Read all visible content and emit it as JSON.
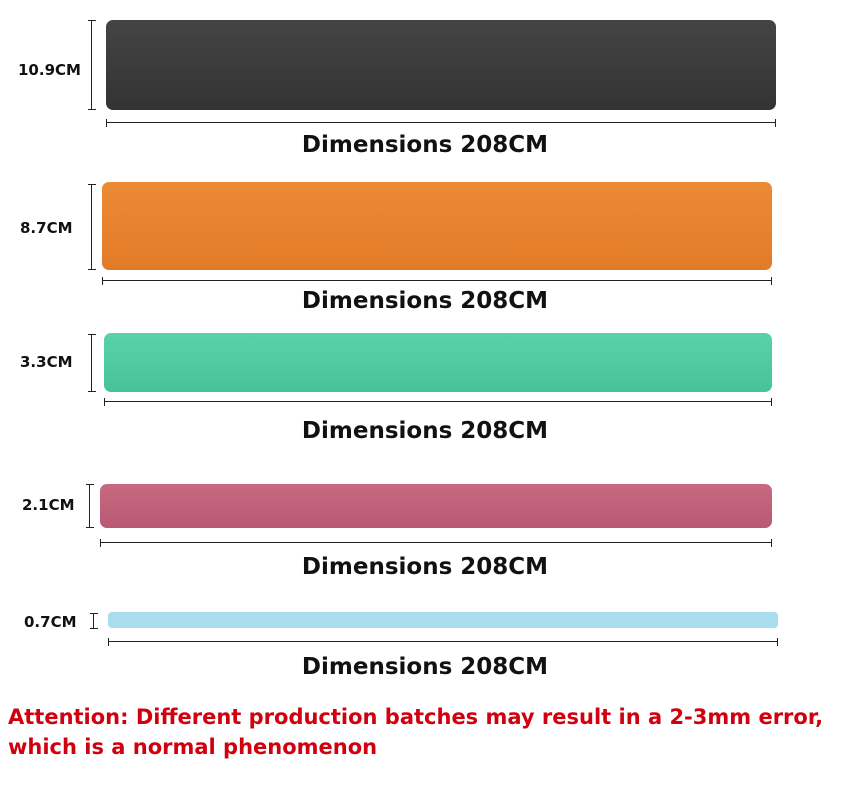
{
  "bands": [
    {
      "thickness": "10.9CM",
      "length": "Dimensions 208CM",
      "color": "#3b3b3b"
    },
    {
      "thickness": "8.7CM",
      "length": "Dimensions 208CM",
      "color": "#e8842f"
    },
    {
      "thickness": "3.3CM",
      "length": "Dimensions 208CM",
      "color": "#4fcaa1"
    },
    {
      "thickness": "2.1CM",
      "length": "Dimensions 208CM",
      "color": "#c2617b"
    },
    {
      "thickness": "0.7CM",
      "length": "Dimensions 208CM",
      "color": "#a9dcef"
    }
  ],
  "notice": {
    "line1": "Attention: Different production batches may result in a 2-3mm error,",
    "line2": "which is a normal phenomenon",
    "color": "#d0000f"
  }
}
